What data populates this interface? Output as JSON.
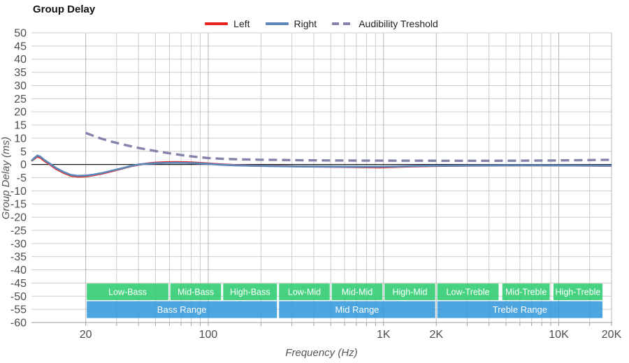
{
  "title": "Group Delay",
  "legend": {
    "items": [
      {
        "label": "Left",
        "color": "#e8231e",
        "dashed": false
      },
      {
        "label": "Right",
        "color": "#5d87b8",
        "dashed": false
      },
      {
        "label": "Audibility Treshold",
        "color": "#8383ac",
        "dashed": true
      }
    ]
  },
  "chart_data": {
    "type": "line",
    "title": "Group Delay",
    "xlabel": "Frequency (Hz)",
    "ylabel": "Group Delay (ms)",
    "x_scale": "log",
    "xlim": [
      9.8,
      20000
    ],
    "ylim": [
      -60,
      50
    ],
    "grid": true,
    "legend_position": "top-center",
    "y_ticks": [
      "50",
      "45",
      "40",
      "35",
      "30",
      "25",
      "20",
      "15",
      "10",
      "5",
      "0",
      "-5",
      "-10",
      "-15",
      "-20",
      "-25",
      "-30",
      "-35",
      "-40",
      "-45",
      "-50",
      "-55",
      "-60"
    ],
    "x_ticks": [
      {
        "f": 20,
        "label": "20"
      },
      {
        "f": 100,
        "label": "100"
      },
      {
        "f": 1000,
        "label": "1K"
      },
      {
        "f": 2000,
        "label": "2K"
      },
      {
        "f": 10000,
        "label": "10K"
      },
      {
        "f": 20000,
        "label": "20K"
      }
    ],
    "x_gridlines": [
      20,
      30,
      40,
      50,
      60,
      70,
      80,
      90,
      100,
      200,
      300,
      400,
      500,
      600,
      700,
      800,
      900,
      1000,
      2000,
      3000,
      4000,
      5000,
      6000,
      7000,
      8000,
      9000,
      10000,
      15000,
      20000
    ],
    "x_major": [
      20,
      100,
      1000,
      2000,
      10000,
      20000
    ],
    "series": [
      {
        "name": "Left",
        "color": "#e8231e",
        "dash": false,
        "points": [
          [
            9.8,
            1.3
          ],
          [
            10.2,
            2.2
          ],
          [
            10.6,
            3.0
          ],
          [
            11.0,
            2.6
          ],
          [
            11.6,
            1.4
          ],
          [
            12.5,
            0.0
          ],
          [
            13.5,
            -1.6
          ],
          [
            15,
            -3.2
          ],
          [
            16.5,
            -4.3
          ],
          [
            18,
            -4.6
          ],
          [
            20,
            -4.5
          ],
          [
            22,
            -4.1
          ],
          [
            25,
            -3.4
          ],
          [
            28,
            -2.6
          ],
          [
            32,
            -1.6
          ],
          [
            36,
            -0.7
          ],
          [
            40,
            -0.1
          ],
          [
            45,
            0.4
          ],
          [
            50,
            0.7
          ],
          [
            57,
            0.85
          ],
          [
            65,
            0.9
          ],
          [
            75,
            0.85
          ],
          [
            85,
            0.7
          ],
          [
            100,
            0.4
          ],
          [
            115,
            0.1
          ],
          [
            140,
            -0.2
          ],
          [
            180,
            -0.45
          ],
          [
            250,
            -0.6
          ],
          [
            350,
            -0.75
          ],
          [
            500,
            -0.85
          ],
          [
            700,
            -1.0
          ],
          [
            950,
            -1.1
          ],
          [
            1200,
            -0.9
          ],
          [
            1500,
            -0.7
          ],
          [
            2000,
            -0.55
          ],
          [
            3000,
            -0.45
          ],
          [
            5000,
            -0.35
          ],
          [
            8000,
            -0.35
          ],
          [
            12000,
            -0.4
          ],
          [
            16000,
            -0.45
          ],
          [
            20000,
            -0.5
          ]
        ]
      },
      {
        "name": "Right",
        "color": "#5d87b8",
        "dash": false,
        "points": [
          [
            9.8,
            1.4
          ],
          [
            10.2,
            2.5
          ],
          [
            10.6,
            3.4
          ],
          [
            11.0,
            3.0
          ],
          [
            11.6,
            1.7
          ],
          [
            12.5,
            0.3
          ],
          [
            13.5,
            -1.3
          ],
          [
            15,
            -2.9
          ],
          [
            16.5,
            -4.0
          ],
          [
            18,
            -4.3
          ],
          [
            20,
            -4.2
          ],
          [
            22,
            -3.9
          ],
          [
            25,
            -3.2
          ],
          [
            28,
            -2.4
          ],
          [
            32,
            -1.5
          ],
          [
            36,
            -0.6
          ],
          [
            40,
            0.0
          ],
          [
            45,
            0.3
          ],
          [
            50,
            0.5
          ],
          [
            57,
            0.6
          ],
          [
            65,
            0.65
          ],
          [
            75,
            0.6
          ],
          [
            85,
            0.5
          ],
          [
            100,
            0.25
          ],
          [
            115,
            -0.05
          ],
          [
            140,
            -0.3
          ],
          [
            180,
            -0.5
          ],
          [
            250,
            -0.65
          ],
          [
            350,
            -0.75
          ],
          [
            500,
            -0.8
          ],
          [
            700,
            -0.85
          ],
          [
            950,
            -0.85
          ],
          [
            1200,
            -0.75
          ],
          [
            1500,
            -0.6
          ],
          [
            2000,
            -0.5
          ],
          [
            3000,
            -0.4
          ],
          [
            5000,
            -0.3
          ],
          [
            8000,
            -0.3
          ],
          [
            12000,
            -0.35
          ],
          [
            16000,
            -0.4
          ],
          [
            20000,
            -0.45
          ]
        ]
      },
      {
        "name": "Audibility Treshold",
        "color": "#8383ac",
        "dash": true,
        "points": [
          [
            20,
            12.0
          ],
          [
            24,
            10.0
          ],
          [
            28,
            8.7
          ],
          [
            33,
            7.5
          ],
          [
            40,
            6.3
          ],
          [
            48,
            5.3
          ],
          [
            58,
            4.4
          ],
          [
            70,
            3.6
          ],
          [
            85,
            2.9
          ],
          [
            100,
            2.45
          ],
          [
            120,
            2.15
          ],
          [
            150,
            1.95
          ],
          [
            200,
            1.8
          ],
          [
            300,
            1.65
          ],
          [
            450,
            1.55
          ],
          [
            700,
            1.5
          ],
          [
            1000,
            1.48
          ],
          [
            1500,
            1.45
          ],
          [
            2500,
            1.42
          ],
          [
            4000,
            1.42
          ],
          [
            6000,
            1.45
          ],
          [
            9000,
            1.52
          ],
          [
            13000,
            1.62
          ],
          [
            20000,
            1.78
          ]
        ]
      }
    ],
    "range_bands": {
      "sub": [
        {
          "label": "Low-Bass",
          "from": 20,
          "to": 60
        },
        {
          "label": "Mid-Bass",
          "from": 60,
          "to": 120
        },
        {
          "label": "High-Bass",
          "from": 120,
          "to": 250
        },
        {
          "label": "Low-Mid",
          "from": 250,
          "to": 500
        },
        {
          "label": "Mid-Mid",
          "from": 500,
          "to": 1000
        },
        {
          "label": "High-Mid",
          "from": 1000,
          "to": 2000
        },
        {
          "label": "Low-Treble",
          "from": 2000,
          "to": 4600
        },
        {
          "label": "Mid-Treble",
          "from": 4700,
          "to": 9000
        },
        {
          "label": "High-Treble",
          "from": 9200,
          "to": 18000
        }
      ],
      "main": [
        {
          "label": "Bass Range",
          "from": 20,
          "to": 250
        },
        {
          "label": "Mid Range",
          "from": 250,
          "to": 2000
        },
        {
          "label": "Treble Range",
          "from": 2000,
          "to": 18000
        }
      ]
    },
    "band_rows": {
      "sub": {
        "top": -45.2,
        "bottom": -51.5
      },
      "main": {
        "top": -51.9,
        "bottom": -58.3
      }
    },
    "colors": {
      "sub_band": "#2ecc71",
      "main_band": "#3498db",
      "band_text": "#ffffff",
      "grid": "#cccccc",
      "grid_major": "#b5b5b5",
      "axis": "#9e9e9e",
      "zero": "#1a1a1a",
      "tick_text": "#4d4d4d"
    }
  }
}
